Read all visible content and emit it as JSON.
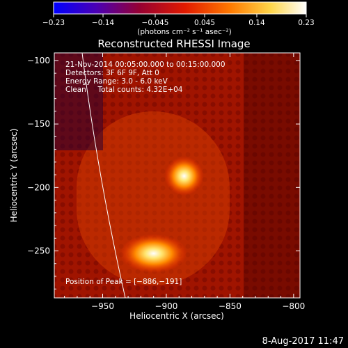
{
  "chart_data": {
    "type": "heatmap",
    "title": "Reconstructed RHESSI Image",
    "xlabel": "Heliocentric X (arcsec)",
    "ylabel": "Heliocentric Y (arcsec)",
    "xlim": [
      -988,
      -795
    ],
    "ylim": [
      -287,
      -94
    ],
    "x_ticks": [
      -950,
      -900,
      -850,
      -800
    ],
    "x_tick_labels": [
      "−950",
      "−900",
      "−850",
      "−800"
    ],
    "y_ticks": [
      -100,
      -150,
      -200,
      -250
    ],
    "y_tick_labels": [
      "−100",
      "−150",
      "−200",
      "−250"
    ],
    "colorbar": {
      "range": [
        -0.23,
        0.23
      ],
      "ticks": [
        -0.23,
        -0.14,
        -0.045,
        0.045,
        0.14,
        0.23
      ],
      "tick_labels": [
        "−0.23",
        "−0.14",
        "−0.045",
        "0.045",
        "0.14",
        "0.23"
      ],
      "units_label": "(photons cm⁻² s⁻¹ asec⁻²)",
      "colors": [
        "#0000ff",
        "#4b00b4",
        "#960032",
        "#e11a00",
        "#ff7a00",
        "#ffd64a",
        "#ffffff"
      ]
    },
    "sources": [
      {
        "x": -886,
        "y": -191,
        "value": 0.23
      },
      {
        "x": -910,
        "y": -252,
        "value": 0.2
      }
    ],
    "annotations": {
      "date_line": "21-Nov-2014 00:05:00.000 to 00:15:00.000",
      "detectors_line": "Detectors: 3F 6F 9F, Att 0",
      "energy_line": "Energy Range: 3.0 - 6.0 keV",
      "clean_line": "Clean     Total counts: 4.32E+04",
      "peak_line": "Position of Peak = [−886,−191]"
    },
    "footer_timestamp": "8-Aug-2017 11:47"
  }
}
